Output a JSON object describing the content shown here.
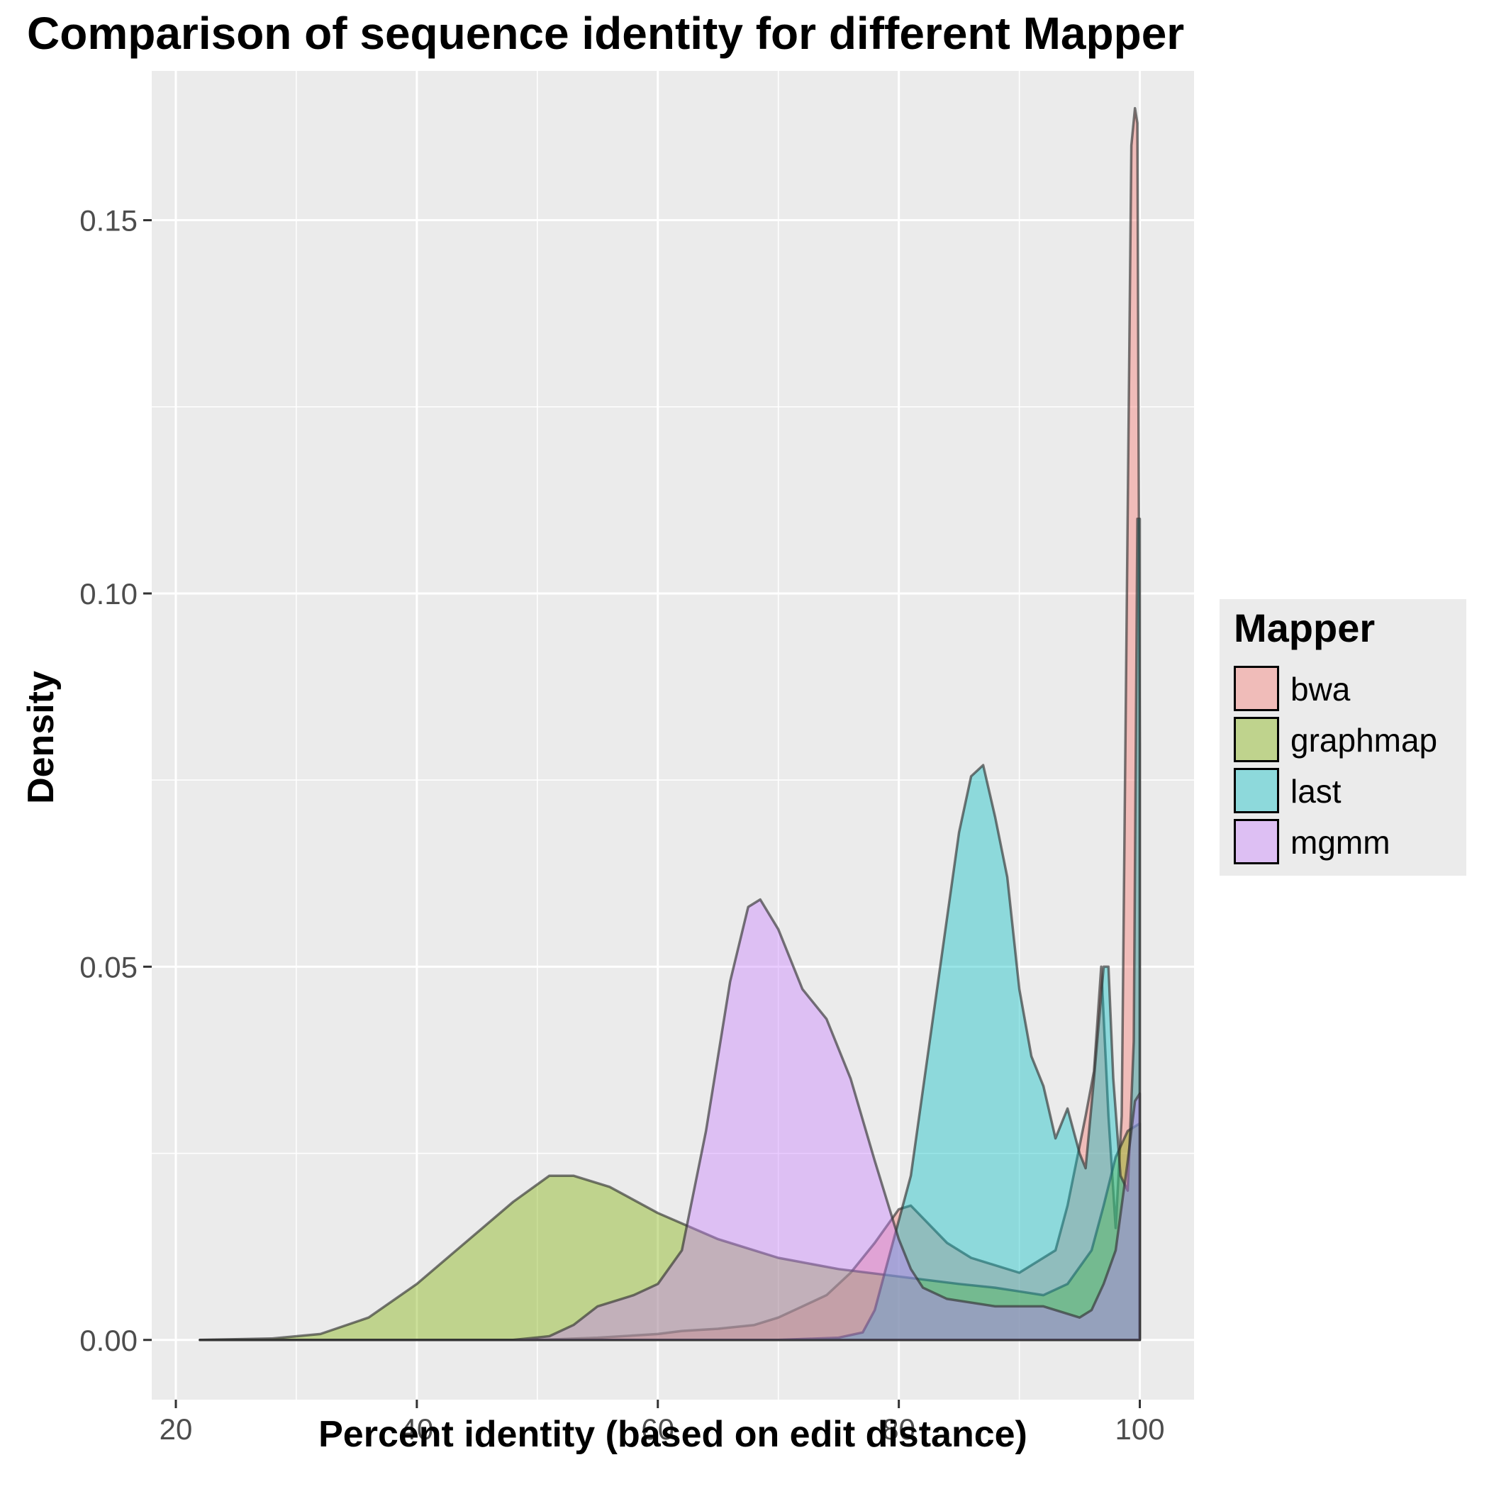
{
  "chart_data": {
    "type": "area",
    "title": "Comparison of sequence identity for different Mapper",
    "xlabel": "Percent identity (based on edit distance)",
    "ylabel": "Density",
    "xlim": [
      18,
      104.5
    ],
    "ylim": [
      -0.008,
      0.17
    ],
    "xticks": [
      "20",
      "40",
      "60",
      "80",
      "100"
    ],
    "yticks": [
      "0.00",
      "0.05",
      "0.10",
      "0.15"
    ],
    "grid": true,
    "legend": {
      "title": "Mapper",
      "position": "right"
    },
    "series": [
      {
        "name": "bwa",
        "color": "#F8766D",
        "points": [
          [
            22,
            0
          ],
          [
            50,
            0
          ],
          [
            55,
            0.0003
          ],
          [
            60,
            0.0008
          ],
          [
            62,
            0.0012
          ],
          [
            65,
            0.0015
          ],
          [
            68,
            0.002
          ],
          [
            70,
            0.003
          ],
          [
            72,
            0.0045
          ],
          [
            74,
            0.006
          ],
          [
            76,
            0.009
          ],
          [
            78,
            0.013
          ],
          [
            80,
            0.0175
          ],
          [
            81,
            0.018
          ],
          [
            84,
            0.013
          ],
          [
            86,
            0.011
          ],
          [
            90,
            0.009
          ],
          [
            93,
            0.012
          ],
          [
            94,
            0.018
          ],
          [
            95.5,
            0.03
          ],
          [
            96.2,
            0.036
          ],
          [
            96.8,
            0.05
          ],
          [
            97.4,
            0.03
          ],
          [
            98,
            0.015
          ],
          [
            98.5,
            0.03
          ],
          [
            99.3,
            0.16
          ],
          [
            99.6,
            0.165
          ],
          [
            99.8,
            0.163
          ],
          [
            100,
            0.08
          ],
          [
            100,
            0
          ]
        ]
      },
      {
        "name": "graphmap",
        "color": "#7CAE00",
        "points": [
          [
            22,
            0
          ],
          [
            28,
            0.0002
          ],
          [
            32,
            0.0008
          ],
          [
            36,
            0.003
          ],
          [
            40,
            0.0075
          ],
          [
            44,
            0.013
          ],
          [
            48,
            0.0185
          ],
          [
            51,
            0.022
          ],
          [
            53,
            0.022
          ],
          [
            56,
            0.0205
          ],
          [
            60,
            0.017
          ],
          [
            65,
            0.0135
          ],
          [
            70,
            0.011
          ],
          [
            75,
            0.0095
          ],
          [
            80,
            0.0085
          ],
          [
            85,
            0.0075
          ],
          [
            88,
            0.007
          ],
          [
            90,
            0.0065
          ],
          [
            92,
            0.006
          ],
          [
            94,
            0.0075
          ],
          [
            96,
            0.012
          ],
          [
            97,
            0.018
          ],
          [
            98,
            0.0245
          ],
          [
            99,
            0.028
          ],
          [
            100,
            0.029
          ],
          [
            100,
            0
          ]
        ]
      },
      {
        "name": "last",
        "color": "#00BFC4",
        "points": [
          [
            22,
            0
          ],
          [
            70,
            0
          ],
          [
            75,
            0.0003
          ],
          [
            77,
            0.001
          ],
          [
            78,
            0.004
          ],
          [
            79,
            0.01
          ],
          [
            81,
            0.022
          ],
          [
            83,
            0.045
          ],
          [
            85,
            0.068
          ],
          [
            86,
            0.0755
          ],
          [
            87,
            0.077
          ],
          [
            88,
            0.07
          ],
          [
            89,
            0.062
          ],
          [
            90,
            0.047
          ],
          [
            91,
            0.038
          ],
          [
            92,
            0.034
          ],
          [
            93,
            0.027
          ],
          [
            94,
            0.031
          ],
          [
            95,
            0.025
          ],
          [
            95.5,
            0.023
          ],
          [
            96.2,
            0.035
          ],
          [
            97,
            0.05
          ],
          [
            97.4,
            0.05
          ],
          [
            97.8,
            0.035
          ],
          [
            98.4,
            0.022
          ],
          [
            99,
            0.02
          ],
          [
            99.5,
            0.04
          ],
          [
            99.8,
            0.11
          ],
          [
            100,
            0.11
          ],
          [
            100,
            0
          ]
        ]
      },
      {
        "name": "mgmm",
        "color": "#C77CFF",
        "points": [
          [
            22,
            0
          ],
          [
            48,
            0
          ],
          [
            51,
            0.0005
          ],
          [
            53,
            0.002
          ],
          [
            55,
            0.0045
          ],
          [
            58,
            0.006
          ],
          [
            60,
            0.0075
          ],
          [
            62,
            0.012
          ],
          [
            64,
            0.028
          ],
          [
            66,
            0.048
          ],
          [
            67.5,
            0.058
          ],
          [
            68.5,
            0.059
          ],
          [
            70,
            0.055
          ],
          [
            72,
            0.047
          ],
          [
            74,
            0.043
          ],
          [
            76,
            0.035
          ],
          [
            78,
            0.024
          ],
          [
            80,
            0.0135
          ],
          [
            81,
            0.0095
          ],
          [
            82,
            0.007
          ],
          [
            84,
            0.0055
          ],
          [
            88,
            0.0045
          ],
          [
            92,
            0.0045
          ],
          [
            95,
            0.003
          ],
          [
            96,
            0.004
          ],
          [
            97,
            0.0075
          ],
          [
            98,
            0.012
          ],
          [
            99,
            0.024
          ],
          [
            99.6,
            0.032
          ],
          [
            100,
            0.033
          ],
          [
            100,
            0
          ]
        ]
      }
    ]
  }
}
